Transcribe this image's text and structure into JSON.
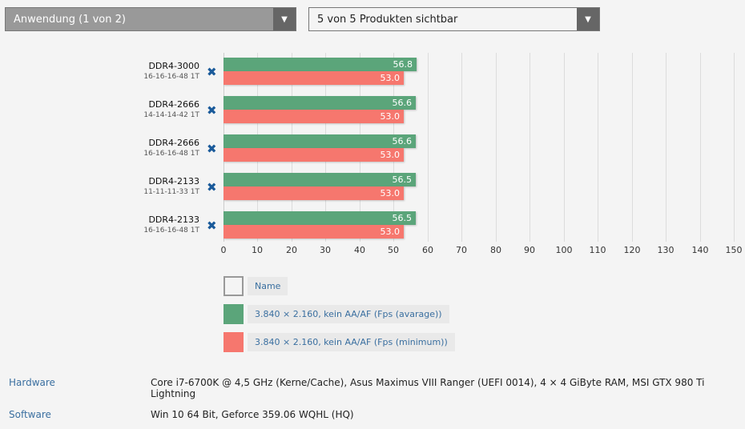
{
  "dropdowns": {
    "view": {
      "label": "Anwendung (1 von 2)",
      "arrow": "▼"
    },
    "products": {
      "label": "5 von 5 Produkten sichtbar",
      "arrow": "▼"
    }
  },
  "colors": {
    "avg": "#5ba57a",
    "min": "#f6776e"
  },
  "rows": [
    {
      "name": "DDR4-3000",
      "timings": "16-16-16-48 1T",
      "avg": "56.8",
      "min": "53.0",
      "remove": "✖"
    },
    {
      "name": "DDR4-2666",
      "timings": "14-14-14-42 1T",
      "avg": "56.6",
      "min": "53.0",
      "remove": "✖"
    },
    {
      "name": "DDR4-2666",
      "timings": "16-16-16-48 1T",
      "avg": "56.6",
      "min": "53.0",
      "remove": "✖"
    },
    {
      "name": "DDR4-2133",
      "timings": "11-11-11-33 1T",
      "avg": "56.5",
      "min": "53.0",
      "remove": "✖"
    },
    {
      "name": "DDR4-2133",
      "timings": "16-16-16-48 1T",
      "avg": "56.5",
      "min": "53.0",
      "remove": "✖"
    }
  ],
  "ticks": [
    "0",
    "10",
    "20",
    "30",
    "40",
    "50",
    "60",
    "70",
    "80",
    "90",
    "100",
    "110",
    "120",
    "130",
    "140",
    "150"
  ],
  "legend": [
    {
      "label": "Name"
    },
    {
      "label": "3.840 × 2.160, kein AA/AF (Fps (avarage))"
    },
    {
      "label": "3.840 × 2.160, kein AA/AF (Fps (minimum))"
    }
  ],
  "info": {
    "hardware_label": "Hardware",
    "hardware_value": "Core i7-6700K @ 4,5 GHz (Kerne/Cache), Asus Maximus VIII Ranger (UEFI 0014), 4 × 4 GiByte RAM, MSI GTX 980 Ti Lightning",
    "software_label": "Software",
    "software_value": "Win 10 64 Bit, Geforce 359.06 WQHL (HQ)"
  },
  "chart_data": {
    "type": "bar",
    "orientation": "horizontal",
    "categories": [
      "DDR4-3000 16-16-16-48 1T",
      "DDR4-2666 14-14-14-42 1T",
      "DDR4-2666 16-16-16-48 1T",
      "DDR4-2133 11-11-11-33 1T",
      "DDR4-2133 16-16-16-48 1T"
    ],
    "series": [
      {
        "name": "3.840 × 2.160, kein AA/AF (Fps (avarage))",
        "color": "#5ba57a",
        "values": [
          56.8,
          56.6,
          56.6,
          56.5,
          56.5
        ]
      },
      {
        "name": "3.840 × 2.160, kein AA/AF (Fps (minimum))",
        "color": "#f6776e",
        "values": [
          53.0,
          53.0,
          53.0,
          53.0,
          53.0
        ]
      }
    ],
    "xlim": [
      0,
      150
    ],
    "xticks": [
      0,
      10,
      20,
      30,
      40,
      50,
      60,
      70,
      80,
      90,
      100,
      110,
      120,
      130,
      140,
      150
    ],
    "grid": true,
    "legend_position": "bottom"
  }
}
